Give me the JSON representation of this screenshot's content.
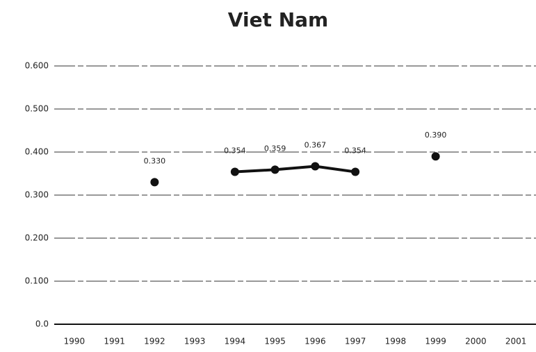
{
  "chart_data": {
    "type": "line",
    "title": "Viet Nam",
    "categories": [
      "1990",
      "1991",
      "1992",
      "1993",
      "1994",
      "1995",
      "1996",
      "1997",
      "1998",
      "1999",
      "2000",
      "2001"
    ],
    "series": [
      {
        "color": "#111111",
        "values": [
          null,
          null,
          0.33,
          null,
          0.354,
          0.359,
          0.367,
          0.354,
          null,
          0.39,
          null,
          null
        ],
        "value_labels": [
          null,
          null,
          "0.330",
          null,
          "0.354",
          "0.359",
          "0.367",
          "0.354",
          null,
          "0.390",
          null,
          null
        ]
      }
    ],
    "ylim": [
      0,
      0.6
    ],
    "yticks": [
      {
        "value": 0,
        "label": "0.0"
      },
      {
        "value": 0.1,
        "label": "0.100"
      },
      {
        "value": 0.2,
        "label": "0.200"
      },
      {
        "value": 0.3,
        "label": "0.300"
      },
      {
        "value": 0.4,
        "label": "0.400"
      },
      {
        "value": 0.5,
        "label": "0.500"
      },
      {
        "value": 0.6,
        "label": "0.600"
      }
    ],
    "grid": true
  }
}
